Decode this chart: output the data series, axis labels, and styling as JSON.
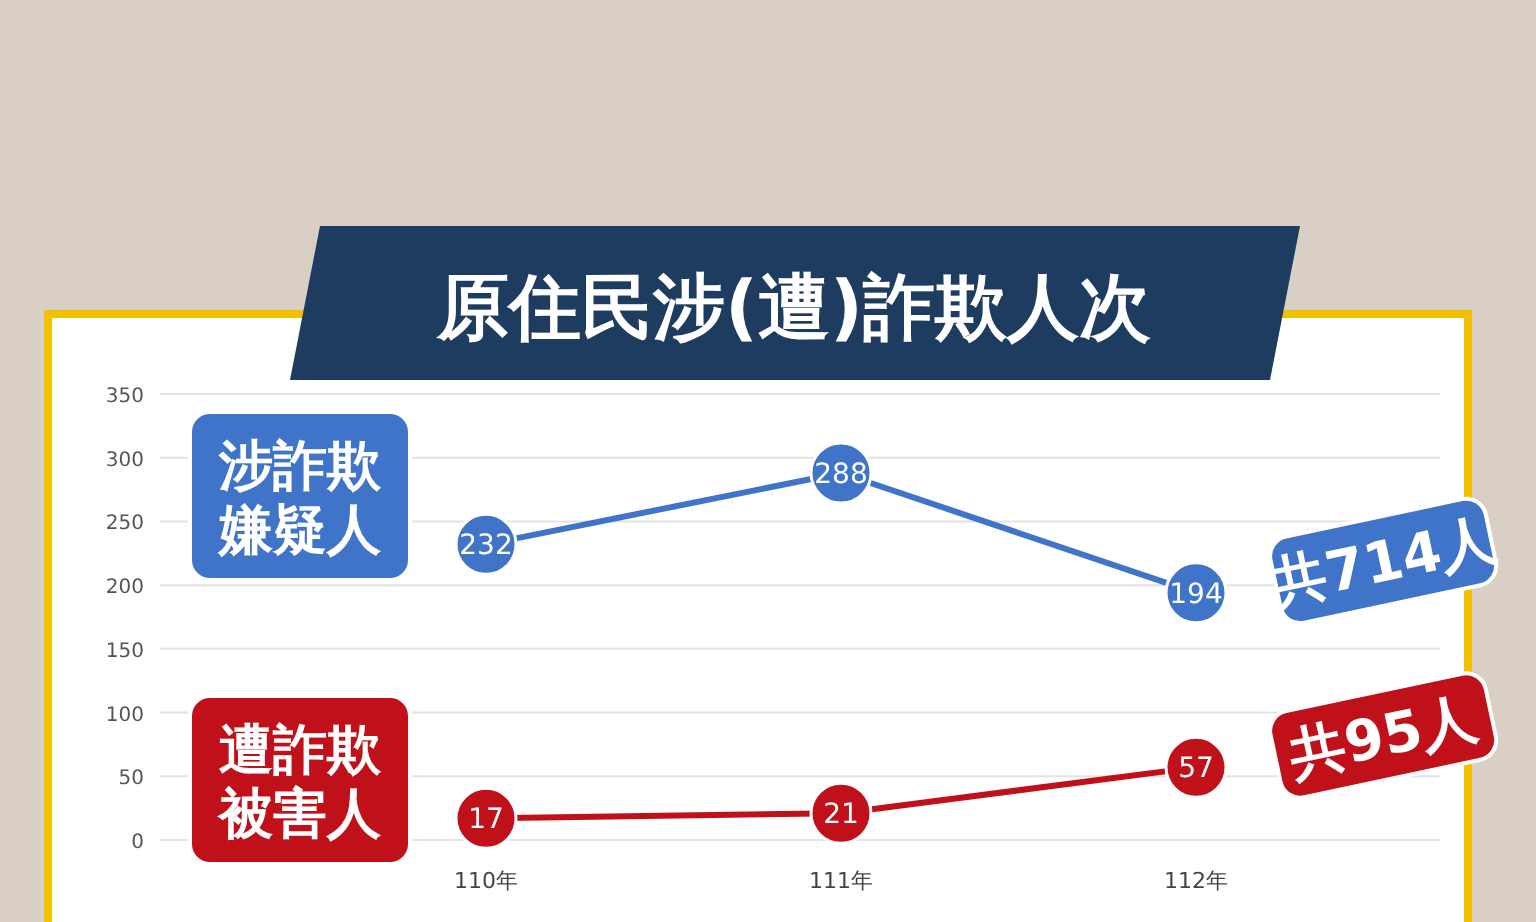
{
  "chart_data": {
    "type": "line",
    "title": "原住民涉(遭)詐欺人次",
    "categories": [
      "110年",
      "111年",
      "112年"
    ],
    "series": [
      {
        "name": "涉詐欺嫌疑人",
        "color": "#3f74c9",
        "values": [
          232,
          288,
          194
        ]
      },
      {
        "name": "遭詐欺被害人",
        "color": "#c0111b",
        "values": [
          17,
          21,
          57
        ]
      }
    ],
    "ylim": [
      0,
      350
    ],
    "yticks": [
      0,
      50,
      100,
      150,
      200,
      250,
      300,
      350
    ],
    "grid": "y",
    "marker": "circle",
    "data_labels": true,
    "annotations": [
      "共714人",
      "共95人"
    ]
  }
}
